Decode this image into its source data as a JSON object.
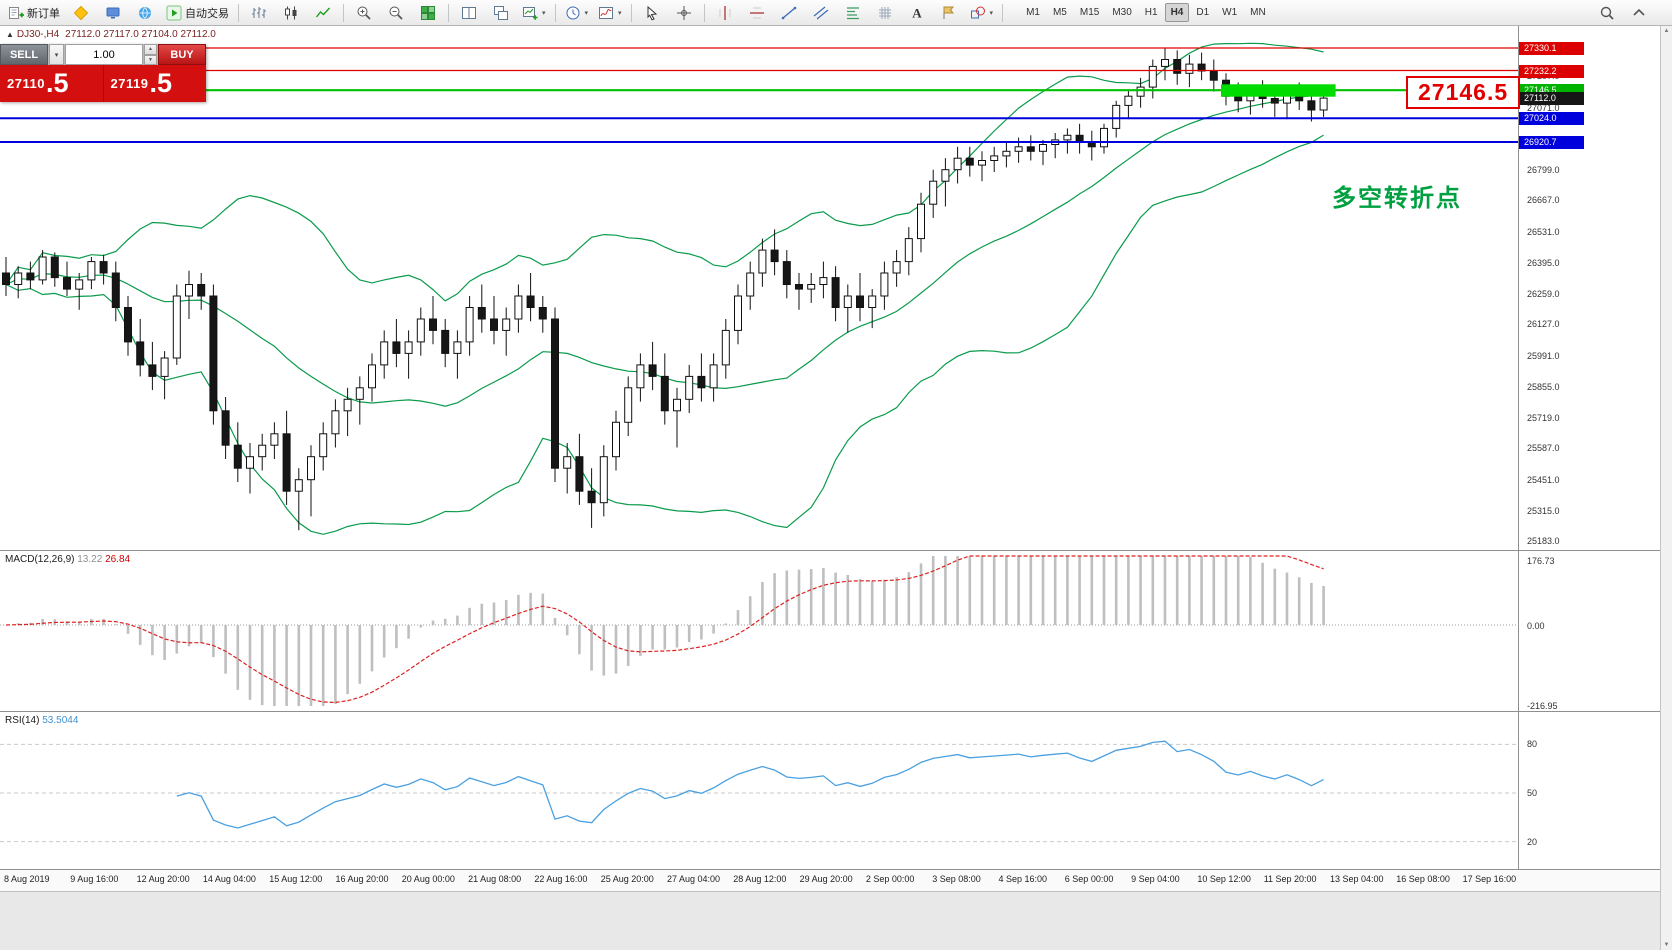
{
  "toolbar": {
    "items": [
      {
        "name": "new-order-button",
        "icon": "new-order",
        "label": "新订单"
      },
      {
        "name": "mql5-button",
        "icon": "mql5"
      },
      {
        "name": "terminal-button",
        "icon": "terminal"
      },
      {
        "name": "community-button",
        "icon": "community"
      },
      {
        "name": "autotrade-button",
        "icon": "autotrade-play",
        "label": "自动交易"
      },
      {
        "sep": true
      },
      {
        "name": "chart-bars-button",
        "icon": "chart-bars"
      },
      {
        "name": "chart-candles-button",
        "icon": "chart-candles"
      },
      {
        "name": "chart-line-button",
        "icon": "chart-line"
      },
      {
        "sep": true
      },
      {
        "name": "zoom-in-button",
        "icon": "zoom-in"
      },
      {
        "name": "zoom-out-button",
        "icon": "zoom-out"
      },
      {
        "name": "tile-windows-button",
        "icon": "tile-windows"
      },
      {
        "sep": true
      },
      {
        "name": "arrange-tile-button",
        "icon": "arrange-tile"
      },
      {
        "name": "arrange-cascade-button",
        "icon": "arrange-cascade"
      },
      {
        "name": "new-chart-button",
        "icon": "new-chart",
        "caret": true
      },
      {
        "sep": true
      },
      {
        "name": "profiles-button",
        "icon": "profiles",
        "caret": true
      },
      {
        "name": "indicators-button",
        "icon": "indicators",
        "caret": true
      },
      {
        "sep": true
      },
      {
        "name": "cursor-button",
        "icon": "cursor"
      },
      {
        "name": "crosshair-button",
        "icon": "crosshair"
      },
      {
        "sep": true
      },
      {
        "name": "vline-button",
        "icon": "vline"
      },
      {
        "name": "hline-button",
        "icon": "hline"
      },
      {
        "name": "trendline-button",
        "icon": "trendline"
      },
      {
        "name": "channel-button",
        "icon": "channel"
      },
      {
        "name": "fibonacci-button",
        "icon": "fibonacci"
      },
      {
        "name": "grid-button",
        "icon": "grid-tool"
      },
      {
        "name": "text-button",
        "icon": "text-tool"
      },
      {
        "name": "label-button",
        "icon": "label-tool"
      },
      {
        "name": "shapes-button",
        "icon": "shapes",
        "caret": true
      },
      {
        "sep": true
      }
    ],
    "timeframes": [
      "M1",
      "M5",
      "M15",
      "M30",
      "H1",
      "H4",
      "D1",
      "W1",
      "MN"
    ],
    "active_timeframe": "H4",
    "right_icons": [
      "search",
      "chevron-up"
    ]
  },
  "symbol_info": {
    "collapse": "▲",
    "symbol": "DJ30-,H4",
    "ohlc": "27112.0 27117.0 27104.0 27112.0"
  },
  "trade_panel": {
    "sell_label": "SELL",
    "buy_label": "BUY",
    "volume": "1.00",
    "bid": "27110.5",
    "ask": "27119.5",
    "bid_small": "27110",
    "bid_big": ".5",
    "ask_small": "27119",
    "ask_big": ".5"
  },
  "annotations": {
    "zone_price": "27146.5",
    "turning_point": "多空转折点"
  },
  "price_axis": {
    "ticks": [
      27207.0,
      27071.0,
      26799.0,
      26667.0,
      26531.0,
      26395.0,
      26259.0,
      26127.0,
      25991.0,
      25855.0,
      25719.0,
      25587.0,
      25451.0,
      25315.0,
      25183.0
    ],
    "markers": [
      {
        "value": "27330.1",
        "price": 27330.1,
        "bg": "#dd0000"
      },
      {
        "value": "27232.2",
        "price": 27232.2,
        "bg": "#dd0000"
      },
      {
        "value": "27146.5",
        "price": 27146.5,
        "bg": "#00b300"
      },
      {
        "value": "27112.0",
        "price": 27112.0,
        "bg": "#161616"
      },
      {
        "value": "27024.0",
        "price": 27024.0,
        "bg": "#0000dd"
      },
      {
        "value": "26920.7",
        "price": 26920.7,
        "bg": "#0000dd"
      }
    ]
  },
  "macd_panel": {
    "name": "MACD(12,26,9)",
    "main_value": "13.22",
    "signal_value": "26.84",
    "axis": [
      "176.73",
      "0.00",
      "-216.95"
    ]
  },
  "rsi_panel": {
    "name": "RSI(14)",
    "value": "53.5044",
    "axis": [
      "80",
      "50",
      "20"
    ]
  },
  "chart_data": {
    "type": "candlestick",
    "symbol": "DJ30-",
    "timeframe": "H4",
    "ylim": [
      25150,
      27430
    ],
    "time_labels": [
      "8 Aug 2019",
      "9 Aug 16:00",
      "12 Aug 20:00",
      "14 Aug 04:00",
      "15 Aug 12:00",
      "16 Aug 20:00",
      "20 Aug 00:00",
      "21 Aug 08:00",
      "22 Aug 16:00",
      "25 Aug 20:00",
      "27 Aug 04:00",
      "28 Aug 12:00",
      "29 Aug 20:00",
      "2 Sep 00:00",
      "3 Sep 08:00",
      "4 Sep 16:00",
      "6 Sep 00:00",
      "9 Sep 04:00",
      "10 Sep 12:00",
      "11 Sep 20:00",
      "13 Sep 04:00",
      "16 Sep 08:00",
      "17 Sep 16:00"
    ],
    "hlines": [
      {
        "price": 27330.1,
        "color": "#e00000",
        "width": 1.3
      },
      {
        "price": 27232.2,
        "color": "#e00000",
        "width": 1.3
      },
      {
        "price": 27146.5,
        "color": "#00c000",
        "width": 2.2
      },
      {
        "price": 27024.0,
        "color": "#0000dd",
        "width": 2
      },
      {
        "price": 26920.7,
        "color": "#0000dd",
        "width": 2
      }
    ],
    "zone": {
      "from_candle": 100,
      "price_top": 27172,
      "price_bottom": 27118,
      "color": "#00dc00"
    },
    "indicators": {
      "bollinger": {
        "period": 20,
        "deviation": 2,
        "color": "#0a9b4b"
      },
      "macd": {
        "fast": 12,
        "slow": 26,
        "signal": 9
      },
      "rsi": {
        "period": 14
      }
    },
    "ohlc": [
      [
        26350,
        26420,
        26250,
        26300
      ],
      [
        26300,
        26380,
        26240,
        26350
      ],
      [
        26350,
        26400,
        26280,
        26320
      ],
      [
        26320,
        26450,
        26300,
        26420
      ],
      [
        26420,
        26440,
        26290,
        26330
      ],
      [
        26330,
        26400,
        26250,
        26280
      ],
      [
        26280,
        26350,
        26190,
        26320
      ],
      [
        26320,
        26420,
        26280,
        26400
      ],
      [
        26400,
        26430,
        26300,
        26350
      ],
      [
        26350,
        26400,
        26140,
        26200
      ],
      [
        26200,
        26250,
        25990,
        26050
      ],
      [
        26050,
        26150,
        25900,
        25950
      ],
      [
        25950,
        26050,
        25840,
        25900
      ],
      [
        25900,
        26010,
        25800,
        25980
      ],
      [
        25980,
        26300,
        25950,
        26250
      ],
      [
        26250,
        26360,
        26150,
        26300
      ],
      [
        26300,
        26350,
        26190,
        26250
      ],
      [
        26250,
        26300,
        25690,
        25750
      ],
      [
        25750,
        25810,
        25540,
        25600
      ],
      [
        25600,
        25700,
        25440,
        25500
      ],
      [
        25500,
        25610,
        25390,
        25550
      ],
      [
        25550,
        25650,
        25490,
        25600
      ],
      [
        25600,
        25700,
        25540,
        25650
      ],
      [
        25650,
        25750,
        25340,
        25400
      ],
      [
        25400,
        25500,
        25230,
        25450
      ],
      [
        25450,
        25600,
        25290,
        25550
      ],
      [
        25550,
        25700,
        25490,
        25650
      ],
      [
        25650,
        25800,
        25590,
        25750
      ],
      [
        25750,
        25850,
        25640,
        25800
      ],
      [
        25800,
        25900,
        25690,
        25850
      ],
      [
        25850,
        26000,
        25790,
        25950
      ],
      [
        25950,
        26100,
        25890,
        26050
      ],
      [
        26050,
        26150,
        25940,
        26000
      ],
      [
        26000,
        26100,
        25890,
        26050
      ],
      [
        26050,
        26200,
        25990,
        26150
      ],
      [
        26150,
        26250,
        26040,
        26100
      ],
      [
        26100,
        26150,
        25940,
        26000
      ],
      [
        26000,
        26100,
        25890,
        26050
      ],
      [
        26050,
        26250,
        25990,
        26200
      ],
      [
        26200,
        26300,
        26090,
        26150
      ],
      [
        26150,
        26250,
        26040,
        26100
      ],
      [
        26100,
        26200,
        25990,
        26150
      ],
      [
        26150,
        26300,
        26090,
        26250
      ],
      [
        26250,
        26350,
        26140,
        26200
      ],
      [
        26200,
        26250,
        26090,
        26150
      ],
      [
        26150,
        26200,
        25440,
        25500
      ],
      [
        25500,
        25610,
        25390,
        25550
      ],
      [
        25550,
        25650,
        25340,
        25400
      ],
      [
        25400,
        25500,
        25240,
        25350
      ],
      [
        25350,
        25600,
        25290,
        25550
      ],
      [
        25550,
        25750,
        25490,
        25700
      ],
      [
        25700,
        25900,
        25640,
        25850
      ],
      [
        25850,
        26000,
        25790,
        25950
      ],
      [
        25950,
        26050,
        25840,
        25900
      ],
      [
        25900,
        26000,
        25690,
        25750
      ],
      [
        25750,
        25850,
        25590,
        25800
      ],
      [
        25800,
        25950,
        25740,
        25900
      ],
      [
        25900,
        26000,
        25790,
        25850
      ],
      [
        25850,
        26000,
        25790,
        25950
      ],
      [
        25950,
        26150,
        25890,
        26100
      ],
      [
        26100,
        26300,
        26040,
        26250
      ],
      [
        26250,
        26400,
        26190,
        26350
      ],
      [
        26350,
        26500,
        26290,
        26450
      ],
      [
        26450,
        26540,
        26340,
        26400
      ],
      [
        26400,
        26450,
        26240,
        26300
      ],
      [
        26300,
        26350,
        26190,
        26280
      ],
      [
        26280,
        26350,
        26220,
        26300
      ],
      [
        26300,
        26400,
        26240,
        26330
      ],
      [
        26330,
        26380,
        26140,
        26200
      ],
      [
        26200,
        26300,
        26090,
        26250
      ],
      [
        26250,
        26350,
        26140,
        26200
      ],
      [
        26200,
        26280,
        26110,
        26250
      ],
      [
        26250,
        26400,
        26190,
        26350
      ],
      [
        26350,
        26450,
        26290,
        26400
      ],
      [
        26400,
        26550,
        26340,
        26500
      ],
      [
        26500,
        26700,
        26440,
        26650
      ],
      [
        26650,
        26800,
        26590,
        26750
      ],
      [
        26750,
        26850,
        26640,
        26800
      ],
      [
        26800,
        26900,
        26740,
        26850
      ],
      [
        26850,
        26900,
        26770,
        26820
      ],
      [
        26820,
        26880,
        26750,
        26840
      ],
      [
        26840,
        26900,
        26790,
        26860
      ],
      [
        26860,
        26920,
        26810,
        26880
      ],
      [
        26880,
        26940,
        26830,
        26900
      ],
      [
        26900,
        26950,
        26840,
        26880
      ],
      [
        26880,
        26930,
        26820,
        26910
      ],
      [
        26910,
        26960,
        26850,
        26930
      ],
      [
        26930,
        26980,
        26870,
        26950
      ],
      [
        26950,
        27000,
        26870,
        26920
      ],
      [
        26920,
        26970,
        26840,
        26900
      ],
      [
        26900,
        27000,
        26870,
        26980
      ],
      [
        26980,
        27100,
        26940,
        27080
      ],
      [
        27080,
        27150,
        27020,
        27120
      ],
      [
        27120,
        27200,
        27070,
        27160
      ],
      [
        27160,
        27280,
        27110,
        27250
      ],
      [
        27250,
        27330,
        27190,
        27280
      ],
      [
        27280,
        27320,
        27170,
        27220
      ],
      [
        27220,
        27300,
        27160,
        27260
      ],
      [
        27260,
        27310,
        27190,
        27230
      ],
      [
        27230,
        27280,
        27140,
        27190
      ],
      [
        27190,
        27220,
        27080,
        27120
      ],
      [
        27120,
        27180,
        27050,
        27100
      ],
      [
        27100,
        27160,
        27040,
        27140
      ],
      [
        27140,
        27190,
        27070,
        27110
      ],
      [
        27110,
        27170,
        27030,
        27090
      ],
      [
        27090,
        27150,
        27020,
        27130
      ],
      [
        27130,
        27180,
        27060,
        27100
      ],
      [
        27100,
        27140,
        27010,
        27060
      ],
      [
        27060,
        27130,
        27030,
        27112
      ]
    ]
  }
}
